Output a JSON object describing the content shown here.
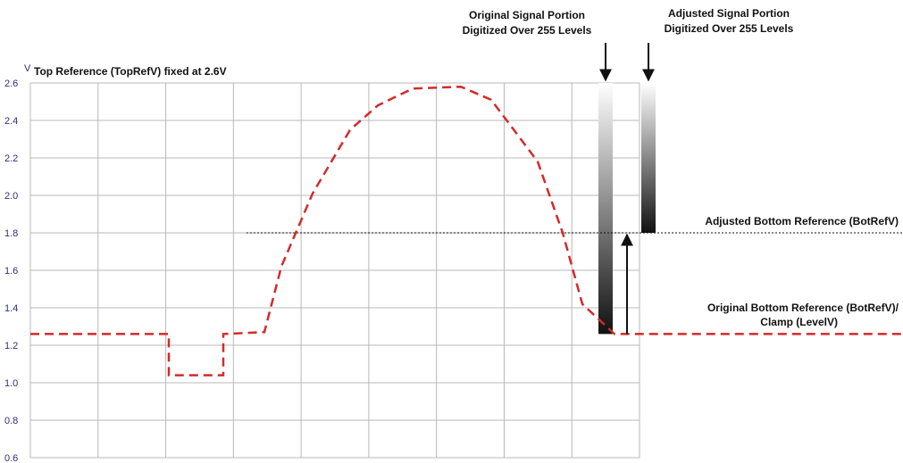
{
  "chart_data": {
    "type": "line",
    "title": "Top Reference (TopRefV) fixed at 2.6V",
    "ylabel": "V",
    "xlabel": "",
    "ylim": [
      0.6,
      2.6
    ],
    "yticks": [
      "2.6",
      "2.4",
      "2.2",
      "2.0",
      "1.8",
      "1.6",
      "1.4",
      "1.2",
      "1.0",
      "0.8",
      "0.6"
    ],
    "grid": true,
    "colors": {
      "signal": "#d42a2a",
      "grid": "#b8b8b8",
      "axis": "#2b2f7a",
      "reference": "#111111"
    },
    "series": [
      {
        "x": [
          0,
          155,
          155,
          156,
          216,
          216,
          262,
          281,
          316,
          358,
          389,
          428,
          482,
          516,
          568,
          596,
          618,
          654,
          993
        ],
        "values": [
          1.26,
          1.26,
          1.04,
          1.04,
          1.04,
          1.26,
          1.27,
          1.62,
          2.01,
          2.35,
          2.48,
          2.57,
          2.58,
          2.51,
          2.18,
          1.8,
          1.42,
          1.26,
          1.26
        ]
      }
    ],
    "reference_lines": [
      {
        "y": 1.8,
        "label": "Adjusted Bottom Reference (BotRefV)",
        "style": "dotted"
      },
      {
        "y": 1.26,
        "label_lines": [
          "Original Bottom Reference (BotRefV)/",
          "Clamp (LevelV)"
        ],
        "style": "none"
      }
    ],
    "gradient_bars": [
      {
        "title_lines": [
          "Original Signal Portion",
          "Digitized Over 255 Levels"
        ],
        "y_top": 2.6,
        "y_bottom": 1.26
      },
      {
        "title_lines": [
          "Adjusted Signal Portion",
          "Digitized Over 255 Levels"
        ],
        "y_top": 2.6,
        "y_bottom": 1.8
      }
    ]
  }
}
